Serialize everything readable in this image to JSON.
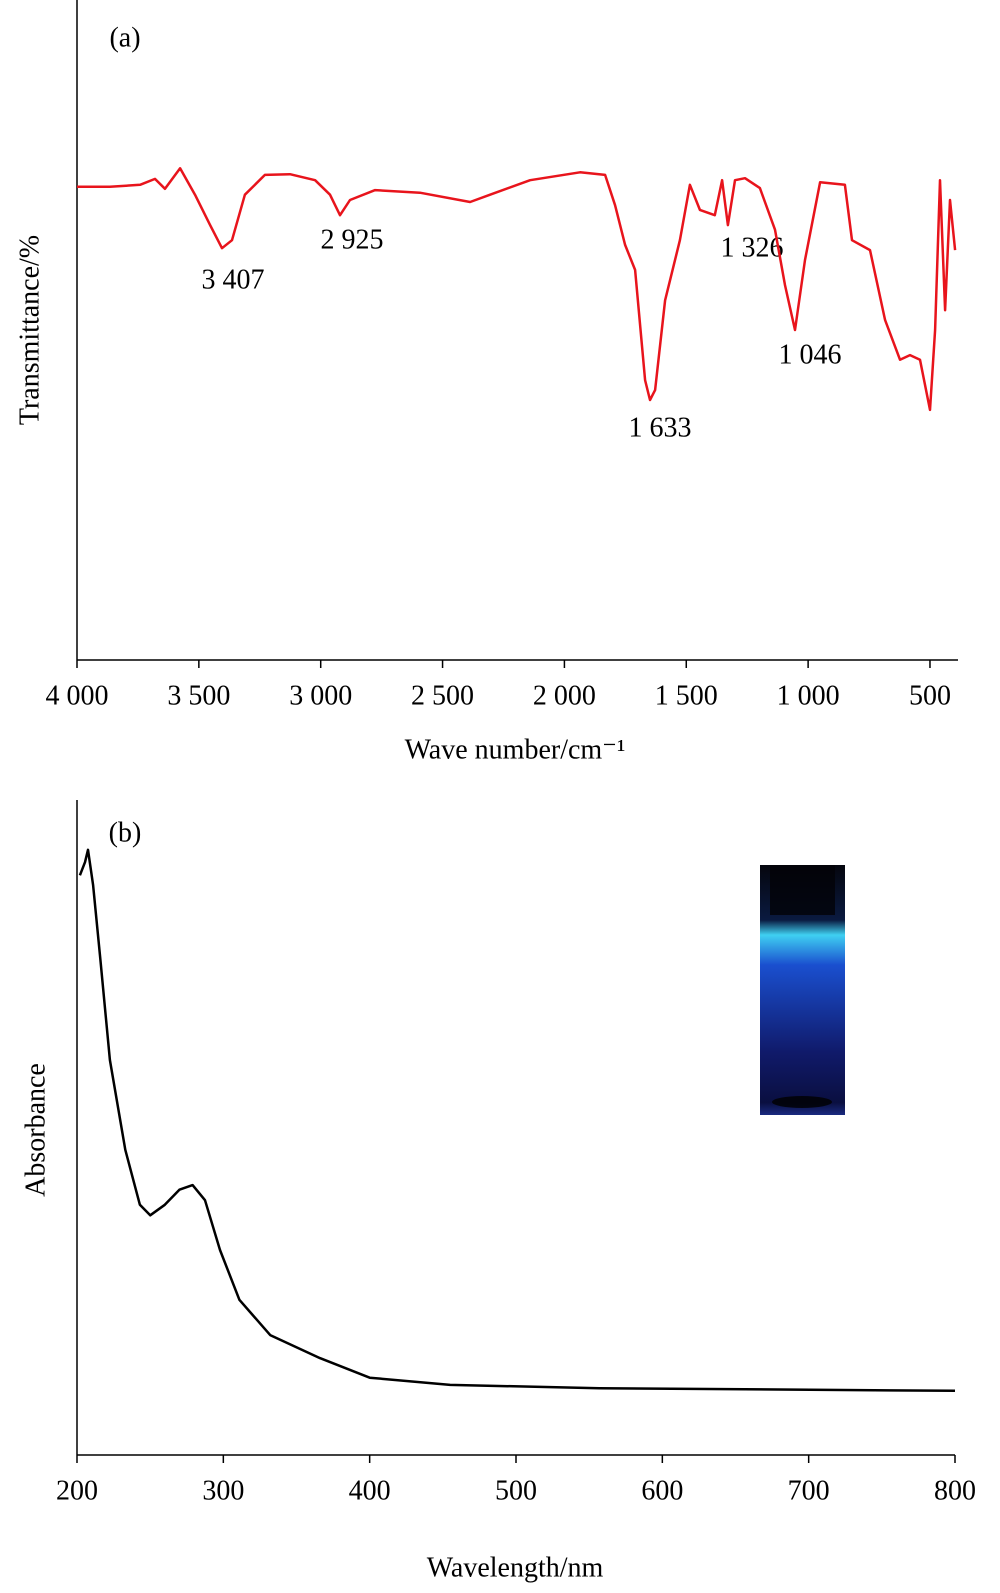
{
  "chart_data": [
    {
      "type": "line",
      "panel_label": "(a)",
      "x_label": "Wave number/cm⁻¹",
      "y_label": "Transmittance/%",
      "color": "#e8141c",
      "xlim": [
        4000,
        385
      ],
      "ylim": [
        0,
        100
      ],
      "xticks": [
        {
          "value": 4000,
          "label": "4 000"
        },
        {
          "value": 3500,
          "label": "3 500"
        },
        {
          "value": 3000,
          "label": "3 000"
        },
        {
          "value": 2500,
          "label": "2 500"
        },
        {
          "value": 2000,
          "label": "2 000"
        },
        {
          "value": 1500,
          "label": "1 500"
        },
        {
          "value": 1000,
          "label": "1 000"
        },
        500
      ],
      "annotations": [
        "3 407",
        "2 925",
        "1 633",
        "1 326",
        "1 046"
      ],
      "x": [
        4000,
        3865,
        3741,
        3680,
        3639,
        3577,
        3516,
        3454,
        3405,
        3364,
        3311,
        3229,
        3126,
        3023,
        2962,
        2921,
        2880,
        2777,
        2593,
        2387,
        2305,
        2141,
        1936,
        1833,
        1792,
        1751,
        1710,
        1669,
        1649,
        1628,
        1587,
        1526,
        1485,
        1444,
        1383,
        1353,
        1329,
        1300,
        1259,
        1198,
        1136,
        1095,
        1054,
        1013,
        951,
        849,
        820,
        746,
        684,
        623,
        582,
        541,
        500,
        479,
        459,
        438,
        418,
        397
      ],
      "values": [
        71.7,
        71.7,
        72,
        72.9,
        71.4,
        74.5,
        70.5,
        65.9,
        62.4,
        63.6,
        70.5,
        73.5,
        73.6,
        72.7,
        70.5,
        67.4,
        69.7,
        71.2,
        70.8,
        69.4,
        70.5,
        72.7,
        73.9,
        73.5,
        68.9,
        62.9,
        59.1,
        42.4,
        39.4,
        40.9,
        54.5,
        63.6,
        72,
        68.2,
        67.4,
        72.7,
        65.9,
        72.7,
        73,
        71.5,
        65.2,
        56.8,
        50,
        60.6,
        72.4,
        72,
        63.6,
        62.1,
        51.5,
        45.5,
        46.2,
        45.5,
        37.9,
        50,
        72.7,
        53,
        69.7,
        62.1
      ]
    },
    {
      "type": "line",
      "panel_label": "(b)",
      "x_label": "Wavelength/nm",
      "y_label": "Absorbance",
      "color": "#000000",
      "xlim": [
        200,
        800
      ],
      "ylim": [
        0,
        100
      ],
      "xticks": [
        200,
        300,
        400,
        500,
        600,
        700,
        800
      ],
      "x": [
        202,
        205.5,
        207.5,
        211,
        216,
        222.5,
        233,
        243,
        250,
        260,
        270,
        279,
        287.5,
        297.7,
        311,
        332,
        366,
        400,
        455,
        557,
        800
      ],
      "values": [
        88.5,
        90.5,
        92.4,
        87,
        75.6,
        60.3,
        46.6,
        38.2,
        36.6,
        38.2,
        40.5,
        41.2,
        38.9,
        31.3,
        23.7,
        18.3,
        14.8,
        11.8,
        10.7,
        10.2,
        9.8
      ]
    }
  ]
}
